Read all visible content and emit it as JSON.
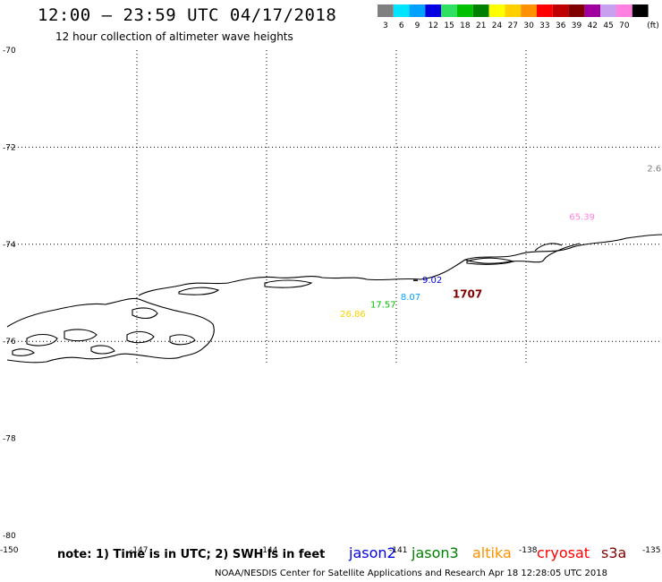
{
  "header": {
    "title": "12:00 – 23:59 UTC 04/17/2018",
    "subtitle": "12 hour collection of altimeter wave heights"
  },
  "legend": {
    "unit": "(ft)",
    "bins": [
      {
        "label": "3",
        "color": "#808080"
      },
      {
        "label": "6",
        "color": "#00e5ff"
      },
      {
        "label": "9",
        "color": "#00a0ff"
      },
      {
        "label": "12",
        "color": "#0000e0"
      },
      {
        "label": "15",
        "color": "#30e060"
      },
      {
        "label": "18",
        "color": "#00c000"
      },
      {
        "label": "21",
        "color": "#008000"
      },
      {
        "label": "24",
        "color": "#ffff00"
      },
      {
        "label": "27",
        "color": "#ffd000"
      },
      {
        "label": "30",
        "color": "#ff9000"
      },
      {
        "label": "33",
        "color": "#ff0000"
      },
      {
        "label": "36",
        "color": "#c00000"
      },
      {
        "label": "39",
        "color": "#800000"
      },
      {
        "label": "42",
        "color": "#a000a0"
      },
      {
        "label": "45",
        "color": "#c8a0f0"
      },
      {
        "label": "70",
        "color": "#ff80e0"
      },
      {
        "label": "",
        "color": "#000000"
      }
    ]
  },
  "lat_labels": [
    {
      "label": "-70",
      "value": -70
    },
    {
      "label": "-72",
      "value": -72
    },
    {
      "label": "-74",
      "value": -74
    },
    {
      "label": "-76",
      "value": -76
    },
    {
      "label": "-78",
      "value": -78
    },
    {
      "label": "-80",
      "value": -80
    }
  ],
  "lon_labels": [
    {
      "label": "-150",
      "value": -150
    },
    {
      "label": "-147",
      "value": -147
    },
    {
      "label": "-144",
      "value": -144
    },
    {
      "label": "-141",
      "value": -141
    },
    {
      "label": "-138",
      "value": -138
    },
    {
      "label": "-135",
      "value": -135
    }
  ],
  "observations": [
    {
      "label": "2.6",
      "lon": -135.2,
      "lat": -72.5,
      "color": "#808080"
    },
    {
      "label": "65.39",
      "lon": -137.0,
      "lat": -73.5,
      "color": "#ff80e0"
    },
    {
      "label": "9.02",
      "lon": -140.4,
      "lat": -74.8,
      "color": "#0000e0"
    },
    {
      "label": "1707",
      "lon": -139.7,
      "lat": -75.1,
      "color": "#800000"
    },
    {
      "label": "8.07",
      "lon": -140.9,
      "lat": -75.15,
      "color": "#00a0ff"
    },
    {
      "label": "17.57",
      "lon": -141.6,
      "lat": -75.3,
      "color": "#00c000"
    },
    {
      "label": "26.86",
      "lon": -142.3,
      "lat": -75.5,
      "color": "#ffd000"
    }
  ],
  "footer": {
    "note": "note: 1) Time is in UTC; 2) SWH is in feet",
    "satellites": [
      {
        "name": "jason2",
        "color": "#0000e0"
      },
      {
        "name": "jason3",
        "color": "#008000"
      },
      {
        "name": "altika",
        "color": "#ff9000"
      },
      {
        "name": "cryosat",
        "color": "#ff0000"
      },
      {
        "name": "s3a",
        "color": "#800000"
      }
    ],
    "credit": "NOAA/NESDIS Center for Satellite Applications and Research    Apr 18 12:28:05 UTC 2018"
  }
}
